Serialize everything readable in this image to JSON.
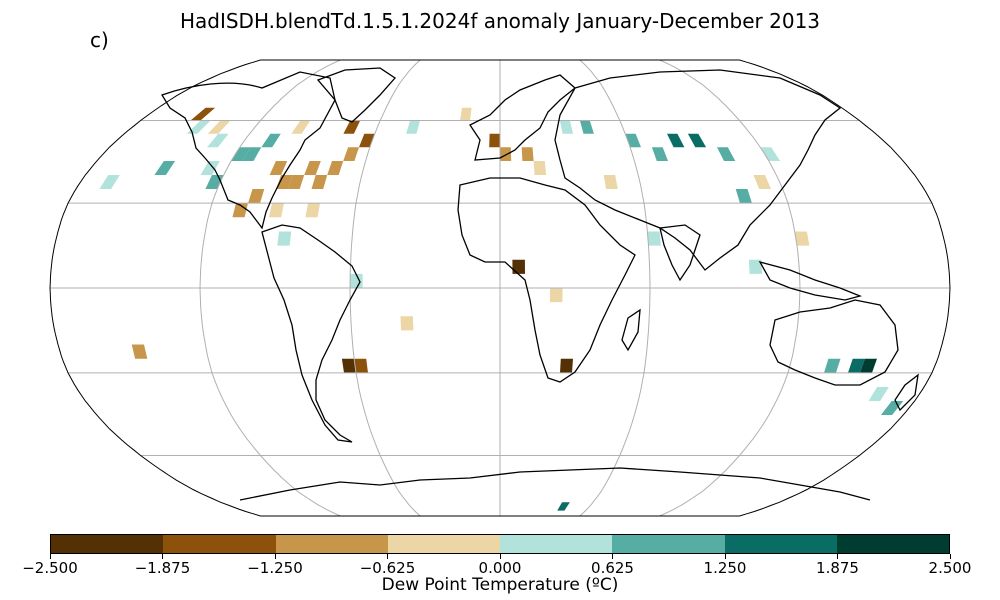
{
  "title": "HadISDH.blendTd.1.5.1.2024f anomaly January-December 2013",
  "panel_label": "c)",
  "colorbar": {
    "label": "Dew Point Temperature (ºC)",
    "ticks": [
      "−2.500",
      "−1.875",
      "−1.250",
      "−0.625",
      "0.000",
      "0.625",
      "1.250",
      "1.875",
      "2.500"
    ],
    "colors": [
      "#543005",
      "#8c510a",
      "#c8964a",
      "#ecd6a6",
      "#b2e2dc",
      "#56ada3",
      "#0a6d65",
      "#003c30"
    ]
  },
  "map": {
    "projection": "Robinson",
    "gridlines": true,
    "cells": [
      {
        "lon": -120,
        "lat": 50,
        "bin": 5
      },
      {
        "lon": -115,
        "lat": 50,
        "bin": 5
      },
      {
        "lon": -110,
        "lat": 55,
        "bin": 5
      },
      {
        "lon": -125,
        "lat": 40,
        "bin": 5
      },
      {
        "lon": -130,
        "lat": 45,
        "bin": 4
      },
      {
        "lon": -135,
        "lat": 55,
        "bin": 4
      },
      {
        "lon": -95,
        "lat": 40,
        "bin": 2
      },
      {
        "lon": -90,
        "lat": 40,
        "bin": 2
      },
      {
        "lon": -85,
        "lat": 45,
        "bin": 2
      },
      {
        "lon": -80,
        "lat": 40,
        "bin": 2
      },
      {
        "lon": -100,
        "lat": 45,
        "bin": 2
      },
      {
        "lon": -75,
        "lat": 45,
        "bin": 2
      },
      {
        "lon": -105,
        "lat": 35,
        "bin": 2
      },
      {
        "lon": -110,
        "lat": 30,
        "bin": 2
      },
      {
        "lon": -95,
        "lat": 30,
        "bin": 3
      },
      {
        "lon": -80,
        "lat": 30,
        "bin": 3
      },
      {
        "lon": -70,
        "lat": 50,
        "bin": 2
      },
      {
        "lon": -65,
        "lat": 55,
        "bin": 1
      },
      {
        "lon": -75,
        "lat": 60,
        "bin": 1
      },
      {
        "lon": -100,
        "lat": 60,
        "bin": 3
      },
      {
        "lon": -140,
        "lat": 60,
        "bin": 3
      },
      {
        "lon": -150,
        "lat": 60,
        "bin": 4
      },
      {
        "lon": -155,
        "lat": 65,
        "bin": 1
      },
      {
        "lon": -45,
        "lat": 60,
        "bin": 4
      },
      {
        "lon": -20,
        "lat": 65,
        "bin": 3
      },
      {
        "lon": -5,
        "lat": 55,
        "bin": 1
      },
      {
        "lon": 0,
        "lat": 50,
        "bin": 2
      },
      {
        "lon": 10,
        "lat": 50,
        "bin": 2
      },
      {
        "lon": 15,
        "lat": 45,
        "bin": 3
      },
      {
        "lon": 30,
        "lat": 60,
        "bin": 4
      },
      {
        "lon": 40,
        "lat": 60,
        "bin": 5
      },
      {
        "lon": 60,
        "lat": 55,
        "bin": 5
      },
      {
        "lon": 80,
        "lat": 55,
        "bin": 6
      },
      {
        "lon": 90,
        "lat": 55,
        "bin": 6
      },
      {
        "lon": 100,
        "lat": 50,
        "bin": 5
      },
      {
        "lon": 70,
        "lat": 50,
        "bin": 5
      },
      {
        "lon": 120,
        "lat": 50,
        "bin": 4
      },
      {
        "lon": 110,
        "lat": 40,
        "bin": 3
      },
      {
        "lon": 100,
        "lat": 35,
        "bin": 5
      },
      {
        "lon": 45,
        "lat": 40,
        "bin": 3
      },
      {
        "lon": 5,
        "lat": 10,
        "bin": 0
      },
      {
        "lon": -65,
        "lat": -25,
        "bin": 0
      },
      {
        "lon": -60,
        "lat": -25,
        "bin": 1
      },
      {
        "lon": 25,
        "lat": -25,
        "bin": 0
      },
      {
        "lon": 150,
        "lat": -25,
        "bin": 7
      },
      {
        "lon": 145,
        "lat": -25,
        "bin": 6
      },
      {
        "lon": 135,
        "lat": -25,
        "bin": 5
      },
      {
        "lon": 40,
        "lat": -80,
        "bin": 6
      },
      {
        "lon": -150,
        "lat": -20,
        "bin": 2
      },
      {
        "lon": -40,
        "lat": -10,
        "bin": 3
      },
      {
        "lon": 20,
        "lat": 0,
        "bin": 3
      },
      {
        "lon": 60,
        "lat": 20,
        "bin": 4
      },
      {
        "lon": 100,
        "lat": 10,
        "bin": 4
      },
      {
        "lon": 120,
        "lat": 20,
        "bin": 3
      },
      {
        "lon": -90,
        "lat": 20,
        "bin": 4
      },
      {
        "lon": -60,
        "lat": 5,
        "bin": 4
      },
      {
        "lon": 160,
        "lat": -35,
        "bin": 4
      },
      {
        "lon": 170,
        "lat": -40,
        "bin": 5
      },
      {
        "lon": -150,
        "lat": 45,
        "bin": 5
      },
      {
        "lon": -170,
        "lat": 40,
        "bin": 4
      }
    ]
  }
}
